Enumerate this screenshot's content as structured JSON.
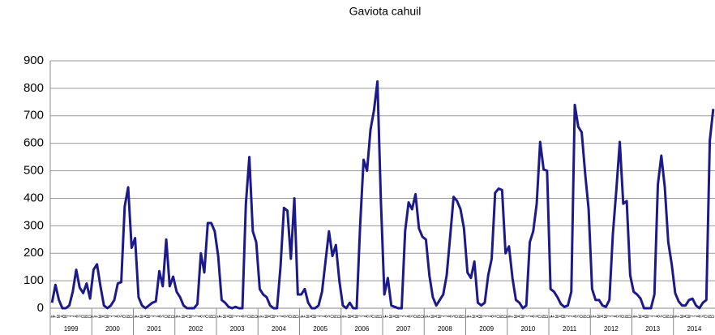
{
  "chart_data": {
    "type": "line",
    "title": "Gaviota cahuil",
    "categories": [
      "E",
      "F",
      "M",
      "A",
      "M",
      "J",
      "J",
      "A",
      "S",
      "O",
      "N",
      "D",
      "E",
      "F",
      "M",
      "A",
      "M",
      "J",
      "J",
      "A",
      "S",
      "O",
      "N",
      "D",
      "E",
      "F",
      "M",
      "A",
      "M",
      "J",
      "J",
      "A",
      "S",
      "O",
      "N",
      "D",
      "E",
      "F",
      "M",
      "A",
      "M",
      "J",
      "J",
      "A",
      "S",
      "O",
      "N",
      "D",
      "E",
      "F",
      "M",
      "A",
      "M",
      "J",
      "J",
      "A",
      "S",
      "O",
      "N",
      "D",
      "E",
      "F",
      "M",
      "A",
      "M",
      "J",
      "J",
      "A",
      "S",
      "O",
      "N",
      "D",
      "E",
      "F",
      "M",
      "A",
      "M",
      "J",
      "J",
      "A",
      "S",
      "O",
      "N",
      "D",
      "E",
      "F",
      "M",
      "A",
      "M",
      "J",
      "J",
      "A",
      "S",
      "O",
      "N",
      "D",
      "E",
      "F",
      "M",
      "A",
      "M",
      "J",
      "J",
      "A",
      "S",
      "O",
      "N",
      "D",
      "E",
      "F",
      "M",
      "A",
      "M",
      "J",
      "J",
      "A",
      "S",
      "O",
      "N",
      "D",
      "E",
      "F",
      "M",
      "A",
      "M",
      "J",
      "J",
      "A",
      "S",
      "O",
      "N",
      "D",
      "E",
      "F",
      "M",
      "A",
      "M",
      "J",
      "J",
      "A",
      "S",
      "O",
      "N",
      "D",
      "E",
      "F",
      "M",
      "A",
      "M",
      "J",
      "J",
      "A",
      "S",
      "O",
      "N",
      "D",
      "E",
      "F",
      "M",
      "A",
      "M",
      "J",
      "J",
      "A",
      "S",
      "O",
      "N",
      "D",
      "E",
      "F",
      "M",
      "A",
      "M",
      "J",
      "J",
      "A",
      "S",
      "O",
      "N",
      "D",
      "E",
      "F",
      "M",
      "A",
      "M",
      "J",
      "J",
      "A",
      "S",
      "O",
      "N",
      "D"
    ],
    "years": [
      "1999",
      "2000",
      "2001",
      "2002",
      "2003",
      "2004",
      "2005",
      "2006",
      "2007",
      "2008",
      "2009",
      "2010",
      "2011",
      "2012",
      "2013",
      "2014"
    ],
    "series": [
      {
        "name": "Gaviota cahuil",
        "color": "#1c1a8a",
        "values": [
          20,
          85,
          30,
          0,
          0,
          10,
          60,
          140,
          75,
          55,
          90,
          35,
          140,
          160,
          80,
          10,
          0,
          10,
          30,
          90,
          95,
          370,
          440,
          220,
          255,
          40,
          10,
          0,
          10,
          20,
          25,
          135,
          80,
          250,
          80,
          115,
          60,
          40,
          10,
          0,
          0,
          0,
          15,
          200,
          130,
          310,
          310,
          280,
          190,
          30,
          20,
          5,
          0,
          5,
          0,
          0,
          380,
          550,
          280,
          240,
          70,
          50,
          40,
          10,
          0,
          0,
          150,
          365,
          355,
          180,
          400,
          50,
          50,
          70,
          20,
          0,
          0,
          10,
          60,
          170,
          280,
          190,
          230,
          100,
          10,
          0,
          20,
          0,
          0,
          300,
          540,
          500,
          650,
          720,
          825,
          390,
          50,
          110,
          10,
          5,
          0,
          0,
          280,
          385,
          360,
          415,
          290,
          260,
          250,
          120,
          40,
          10,
          30,
          50,
          120,
          260,
          405,
          390,
          360,
          290,
          130,
          110,
          170,
          20,
          10,
          20,
          120,
          180,
          420,
          435,
          430,
          200,
          225,
          110,
          30,
          20,
          0,
          10,
          240,
          280,
          380,
          605,
          505,
          500,
          70,
          60,
          40,
          15,
          5,
          10,
          60,
          740,
          660,
          640,
          490,
          360,
          70,
          30,
          30,
          10,
          5,
          30,
          270,
          430,
          605,
          380,
          390,
          120,
          60,
          50,
          35,
          0,
          0,
          0,
          50,
          450,
          555,
          440,
          240,
          160,
          55,
          25,
          10,
          10,
          30,
          35,
          10,
          0,
          20,
          30,
          610,
          725
        ]
      }
    ],
    "ylim": [
      0,
      900
    ],
    "yticks": [
      0,
      100,
      200,
      300,
      400,
      500,
      600,
      700,
      800,
      900
    ],
    "grid": true
  }
}
